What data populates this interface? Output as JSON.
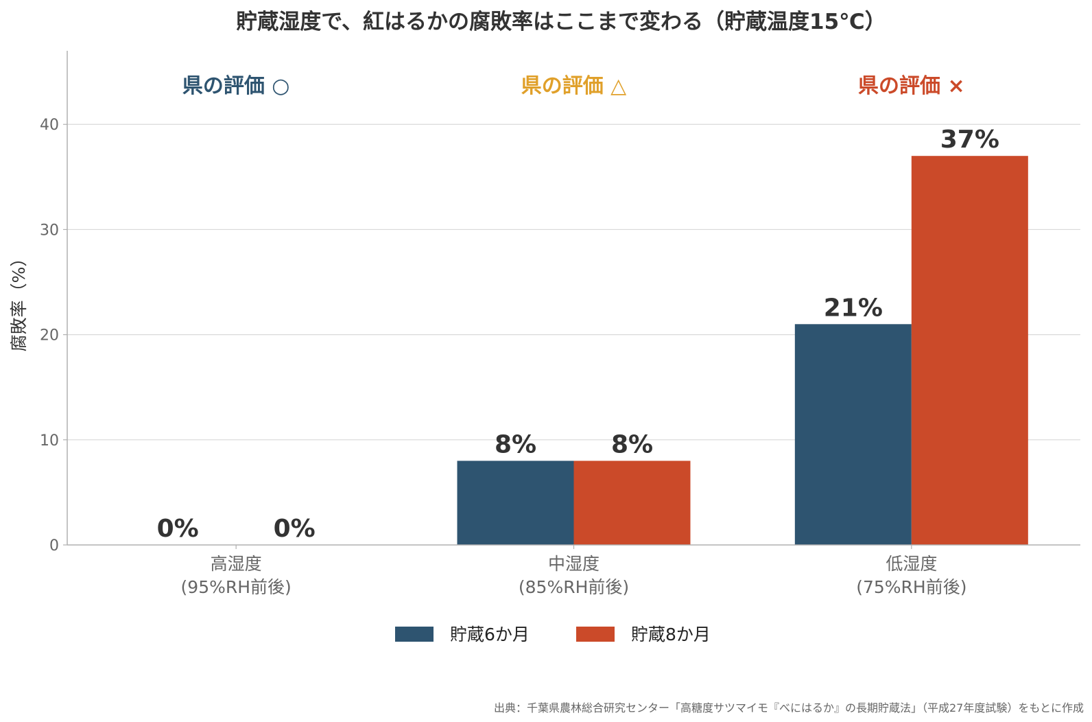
{
  "chart_data": {
    "type": "bar",
    "title": "貯蔵湿度で、紅はるかの腐敗率はここまで変わる（貯蔵温度15℃）",
    "ylabel": "腐敗率（%）",
    "xlabel": "",
    "ylim": [
      0,
      47
    ],
    "yticks": [
      0,
      10,
      20,
      30,
      40
    ],
    "grid": "horizontal",
    "legend_position": "bottom-center",
    "categories": [
      {
        "line1": "高湿度",
        "line2": "(95%RH前後)"
      },
      {
        "line1": "中湿度",
        "line2": "(85%RH前後)"
      },
      {
        "line1": "低湿度",
        "line2": "(75%RH前後)"
      }
    ],
    "series": [
      {
        "name": "貯蔵6か月",
        "color": "#2e5470",
        "values": [
          0,
          8,
          21
        ],
        "labels": [
          "0%",
          "8%",
          "21%"
        ]
      },
      {
        "name": "貯蔵8か月",
        "color": "#cb4a29",
        "values": [
          0,
          8,
          37
        ],
        "labels": [
          "0%",
          "8%",
          "37%"
        ]
      }
    ],
    "evaluations": [
      {
        "text": "県の評価 ○",
        "color": "#2e5470"
      },
      {
        "text": "県の評価 △",
        "color": "#e0a02a"
      },
      {
        "text": "県の評価 ×",
        "color": "#cb4a29"
      }
    ],
    "source": "出典：千葉県農林総合研究センター「高糖度サツマイモ『べにはるか』の長期貯蔵法」（平成27年度試験）をもとに作成"
  }
}
